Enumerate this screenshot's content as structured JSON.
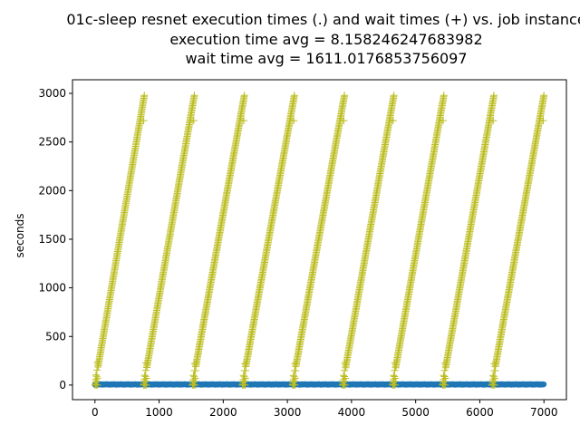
{
  "chart_data": {
    "type": "scatter",
    "title_lines": [
      "01c-sleep resnet execution times (.) and wait times (+) vs. job instance",
      "execution time avg = 8.158246247683982",
      "wait time avg = 1611.0176853756097"
    ],
    "xlabel": "",
    "ylabel": "seconds",
    "xlim": [
      -350,
      7350
    ],
    "ylim": [
      -150,
      3140
    ],
    "x_ticks": [
      0,
      1000,
      2000,
      3000,
      4000,
      5000,
      6000,
      7000
    ],
    "y_ticks": [
      0,
      500,
      1000,
      1500,
      2000,
      2500,
      3000
    ],
    "grid": false,
    "series": [
      {
        "marker": "dot",
        "color": "#1f77b4",
        "x_range": [
          0,
          7000
        ],
        "value_min": 2,
        "value_max": 12,
        "avg": 8.158246247683982
      },
      {
        "marker": "plus",
        "color": "#bcbd22",
        "waves": [
          {
            "x_start": 0,
            "x_end": 770,
            "y_start": 0,
            "y_end": 2980,
            "straggler_x": 760,
            "straggler_y": 2720
          },
          {
            "x_start": 760,
            "x_end": 1550,
            "y_start": 0,
            "y_end": 2980,
            "straggler_x": 1540,
            "straggler_y": 2720
          },
          {
            "x_start": 1520,
            "x_end": 2330,
            "y_start": 0,
            "y_end": 2980,
            "straggler_x": 2320,
            "straggler_y": 2720
          },
          {
            "x_start": 2300,
            "x_end": 3110,
            "y_start": 0,
            "y_end": 2980,
            "straggler_x": 3100,
            "straggler_y": 2720
          },
          {
            "x_start": 3080,
            "x_end": 3890,
            "y_start": 0,
            "y_end": 2980,
            "straggler_x": 3880,
            "straggler_y": 2720
          },
          {
            "x_start": 3860,
            "x_end": 4660,
            "y_start": 0,
            "y_end": 2980,
            "straggler_x": 4650,
            "straggler_y": 2720
          },
          {
            "x_start": 4640,
            "x_end": 5440,
            "y_start": 0,
            "y_end": 2980,
            "straggler_x": 5430,
            "straggler_y": 2720
          },
          {
            "x_start": 5420,
            "x_end": 6220,
            "y_start": 0,
            "y_end": 2980,
            "straggler_x": 6210,
            "straggler_y": 2720
          },
          {
            "x_start": 6190,
            "x_end": 7000,
            "y_start": 0,
            "y_end": 2980,
            "straggler_x": 6990,
            "straggler_y": 2720
          }
        ],
        "avg": 1611.0176853756097
      }
    ]
  }
}
